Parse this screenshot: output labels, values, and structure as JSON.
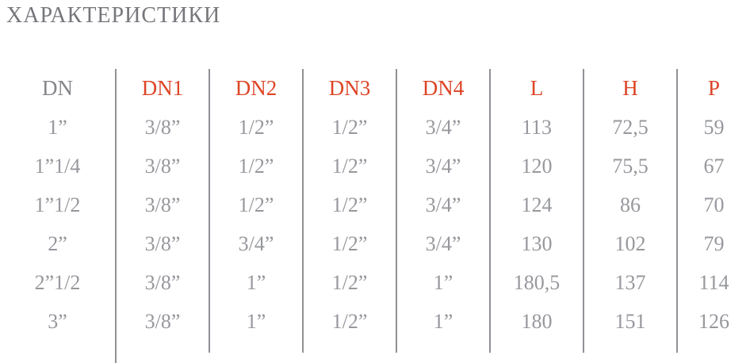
{
  "page_title": "ХАРАКТЕРИСТИКИ",
  "colors": {
    "accent_red": "#dd4527",
    "title_gray": "#76777b",
    "header_gray": "#85868a",
    "data_gray": "#97989d",
    "divider_gray": "#909195"
  },
  "table": {
    "columns": [
      "DN",
      "DN1",
      "DN2",
      "DN3",
      "DN4",
      "L",
      "H",
      "P"
    ],
    "rows": [
      [
        "1”",
        "3/8”",
        "1/2”",
        "1/2”",
        "3/4”",
        "113",
        "72,5",
        "59"
      ],
      [
        "1”1/4",
        "3/8”",
        "1/2”",
        "1/2”",
        "3/4”",
        "120",
        "75,5",
        "67"
      ],
      [
        "1”1/2",
        "3/8”",
        "1/2”",
        "1/2”",
        "3/4”",
        "124",
        "86",
        "70"
      ],
      [
        "2”",
        "3/8”",
        "3/4”",
        "1/2”",
        "3/4”",
        "130",
        "102",
        "79"
      ],
      [
        "2”1/2",
        "3/8”",
        "1”",
        "1/2”",
        "1”",
        "180,5",
        "137",
        "114"
      ],
      [
        "3”",
        "3/8”",
        "1”",
        "1/2”",
        "1”",
        "180",
        "151",
        "126"
      ]
    ]
  }
}
